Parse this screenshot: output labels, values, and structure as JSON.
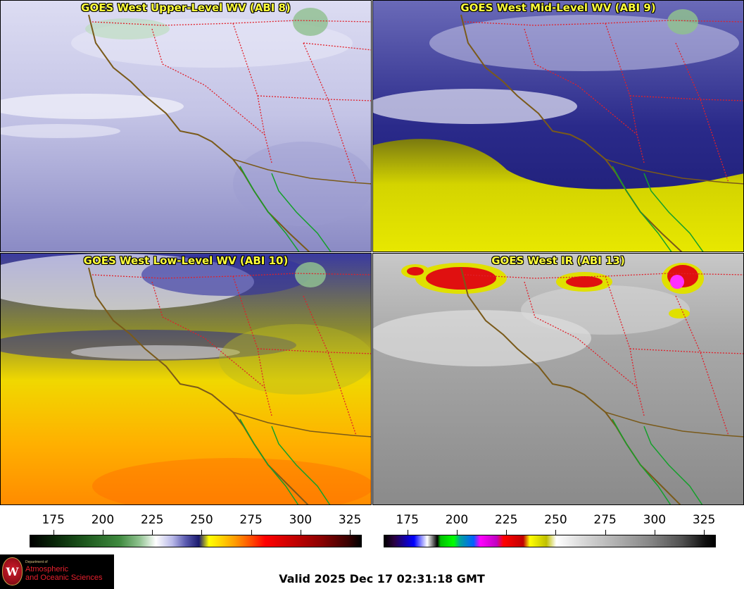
{
  "panels": [
    {
      "id": "upper",
      "title": "GOES West Upper-Level WV (ABI 8)"
    },
    {
      "id": "mid",
      "title": "GOES West Mid-Level WV (ABI 9)"
    },
    {
      "id": "low",
      "title": "GOES West Low-Level WV (ABI 10)"
    },
    {
      "id": "ir",
      "title": "GOES West IR (ABI 13)"
    }
  ],
  "scale_left": {
    "ticks": [
      "175",
      "200",
      "225",
      "250",
      "275",
      "300",
      "325"
    ],
    "tick_values": [
      175,
      200,
      225,
      250,
      275,
      300,
      325
    ],
    "range": [
      163,
      331
    ]
  },
  "scale_right": {
    "ticks": [
      "175",
      "200",
      "225",
      "250",
      "275",
      "300",
      "325"
    ],
    "tick_values": [
      175,
      200,
      225,
      250,
      275,
      300,
      325
    ],
    "range": [
      163,
      331
    ]
  },
  "logo": {
    "seal_letter": "W",
    "small_text": "Department of",
    "line1": "Atmospheric",
    "line2": "and Oceanic Sciences"
  },
  "valid": "Valid 2025 Dec 17 02:31:18 GMT",
  "colors": {
    "title_text": "#ffff3a",
    "state_border": "#e0202a",
    "coast_us": "#7a5a1a",
    "coast_mexico": "#14a02a"
  }
}
